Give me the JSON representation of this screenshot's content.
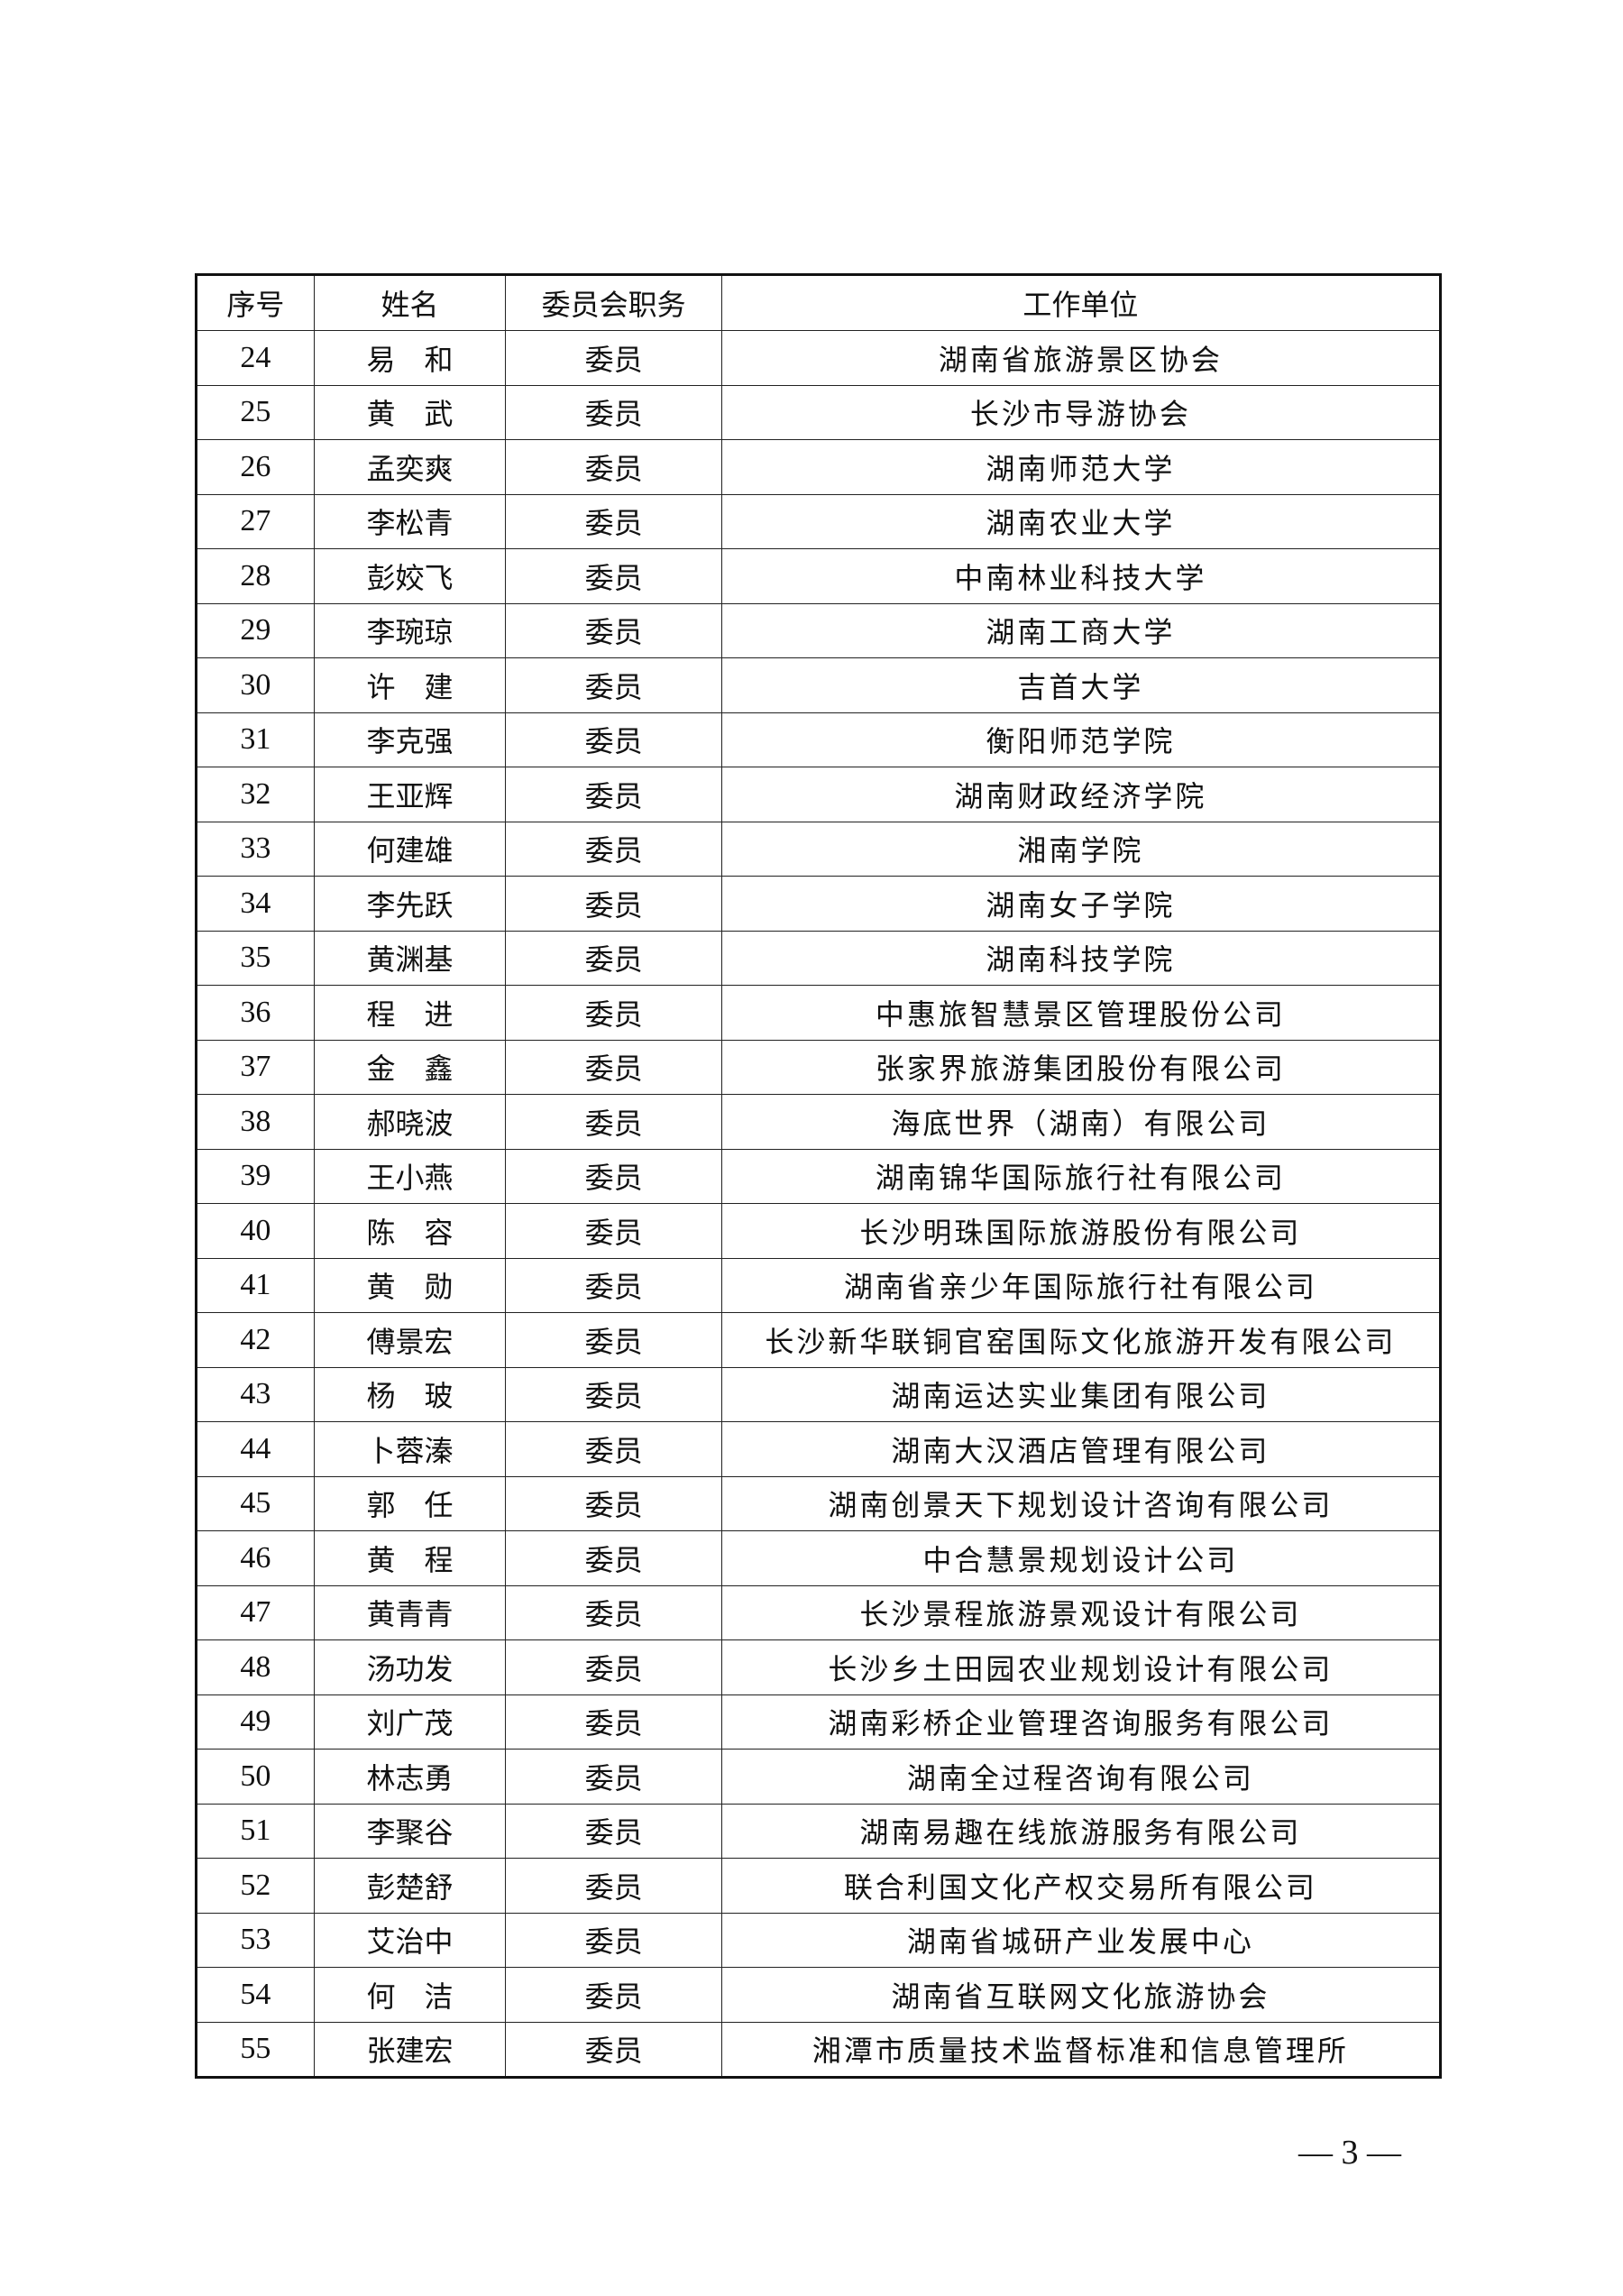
{
  "table": {
    "headers": [
      "序号",
      "姓名",
      "委员会职务",
      "工作单位"
    ],
    "rows": [
      [
        "24",
        "易　和",
        "委员",
        "湖南省旅游景区协会"
      ],
      [
        "25",
        "黄　武",
        "委员",
        "长沙市导游协会"
      ],
      [
        "26",
        "孟奕爽",
        "委员",
        "湖南师范大学"
      ],
      [
        "27",
        "李松青",
        "委员",
        "湖南农业大学"
      ],
      [
        "28",
        "彭姣飞",
        "委员",
        "中南林业科技大学"
      ],
      [
        "29",
        "李琬琼",
        "委员",
        "湖南工商大学"
      ],
      [
        "30",
        "许　建",
        "委员",
        "吉首大学"
      ],
      [
        "31",
        "李克强",
        "委员",
        "衡阳师范学院"
      ],
      [
        "32",
        "王亚辉",
        "委员",
        "湖南财政经济学院"
      ],
      [
        "33",
        "何建雄",
        "委员",
        "湘南学院"
      ],
      [
        "34",
        "李先跃",
        "委员",
        "湖南女子学院"
      ],
      [
        "35",
        "黄渊基",
        "委员",
        "湖南科技学院"
      ],
      [
        "36",
        "程　进",
        "委员",
        "中惠旅智慧景区管理股份公司"
      ],
      [
        "37",
        "金　鑫",
        "委员",
        "张家界旅游集团股份有限公司"
      ],
      [
        "38",
        "郝晓波",
        "委员",
        "海底世界（湖南）有限公司"
      ],
      [
        "39",
        "王小燕",
        "委员",
        "湖南锦华国际旅行社有限公司"
      ],
      [
        "40",
        "陈　容",
        "委员",
        "长沙明珠国际旅游股份有限公司"
      ],
      [
        "41",
        "黄　勋",
        "委员",
        "湖南省亲少年国际旅行社有限公司"
      ],
      [
        "42",
        "傅景宏",
        "委员",
        "长沙新华联铜官窑国际文化旅游开发有限公司"
      ],
      [
        "43",
        "杨　玻",
        "委员",
        "湖南运达实业集团有限公司"
      ],
      [
        "44",
        "卜蓉溱",
        "委员",
        "湖南大汉酒店管理有限公司"
      ],
      [
        "45",
        "郭　任",
        "委员",
        "湖南创景天下规划设计咨询有限公司"
      ],
      [
        "46",
        "黄　程",
        "委员",
        "中合慧景规划设计公司"
      ],
      [
        "47",
        "黄青青",
        "委员",
        "长沙景程旅游景观设计有限公司"
      ],
      [
        "48",
        "汤功发",
        "委员",
        "长沙乡土田园农业规划设计有限公司"
      ],
      [
        "49",
        "刘广茂",
        "委员",
        "湖南彩桥企业管理咨询服务有限公司"
      ],
      [
        "50",
        "林志勇",
        "委员",
        "湖南全过程咨询有限公司"
      ],
      [
        "51",
        "李聚谷",
        "委员",
        "湖南易趣在线旅游服务有限公司"
      ],
      [
        "52",
        "彭楚舒",
        "委员",
        "联合利国文化产权交易所有限公司"
      ],
      [
        "53",
        "艾治中",
        "委员",
        "湖南省城研产业发展中心"
      ],
      [
        "54",
        "何　洁",
        "委员",
        "湖南省互联网文化旅游协会"
      ],
      [
        "55",
        "张建宏",
        "委员",
        "湘潭市质量技术监督标准和信息管理所"
      ]
    ]
  },
  "page_number": "— 3 —"
}
